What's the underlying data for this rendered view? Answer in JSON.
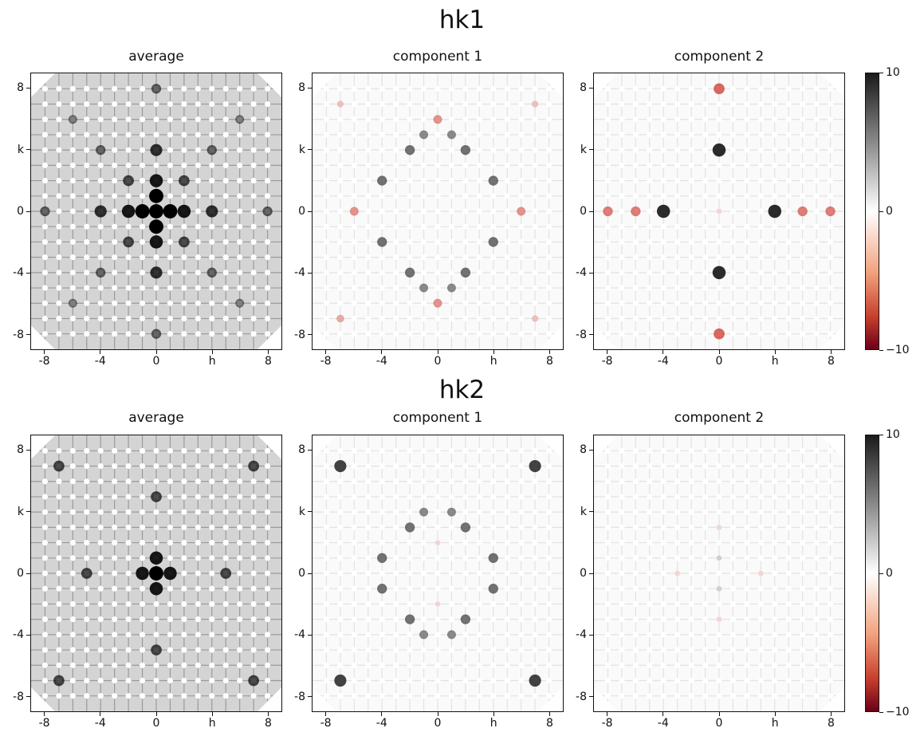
{
  "chart_data": [
    {
      "figure_title": "hk1",
      "type": "heatmap",
      "x_axis": {
        "label": "h",
        "range": [
          -9,
          9
        ],
        "ticks": [
          "-8",
          "-4",
          "0",
          "h",
          "8"
        ],
        "tick_values": [
          -8,
          -4,
          0,
          4,
          8
        ]
      },
      "y_axis": {
        "label": "k",
        "range": [
          -9,
          9
        ],
        "ticks": [
          "8",
          "k",
          "0",
          "-4",
          "-8"
        ],
        "tick_values": [
          8,
          4,
          0,
          -4,
          -8
        ]
      },
      "panels": [
        {
          "title": "average",
          "colormap": "grey",
          "peaks": [
            {
              "h": 0,
              "k": 0,
              "v": 10
            },
            {
              "h": -1,
              "k": 0,
              "v": 10
            },
            {
              "h": 1,
              "k": 0,
              "v": 10
            },
            {
              "h": 0,
              "k": 1,
              "v": 10
            },
            {
              "h": 0,
              "k": -1,
              "v": 10
            },
            {
              "h": 0,
              "k": 2,
              "v": 9
            },
            {
              "h": 0,
              "k": -2,
              "v": 9
            },
            {
              "h": -2,
              "k": 0,
              "v": 9
            },
            {
              "h": 2,
              "k": 0,
              "v": 9
            },
            {
              "h": 0,
              "k": 4,
              "v": 8
            },
            {
              "h": 0,
              "k": -4,
              "v": 8
            },
            {
              "h": -4,
              "k": 0,
              "v": 8
            },
            {
              "h": 4,
              "k": 0,
              "v": 8
            },
            {
              "h": 0,
              "k": 8,
              "v": 6
            },
            {
              "h": 0,
              "k": -8,
              "v": 6
            },
            {
              "h": -8,
              "k": 0,
              "v": 6
            },
            {
              "h": 8,
              "k": 0,
              "v": 6
            },
            {
              "h": -2,
              "k": 2,
              "v": 7
            },
            {
              "h": 2,
              "k": 2,
              "v": 7
            },
            {
              "h": -2,
              "k": -2,
              "v": 7
            },
            {
              "h": 2,
              "k": -2,
              "v": 7
            },
            {
              "h": -4,
              "k": 4,
              "v": 6
            },
            {
              "h": 4,
              "k": 4,
              "v": 6
            },
            {
              "h": -4,
              "k": -4,
              "v": 6
            },
            {
              "h": 4,
              "k": -4,
              "v": 6
            },
            {
              "h": -6,
              "k": 6,
              "v": 5
            },
            {
              "h": 6,
              "k": 6,
              "v": 5
            },
            {
              "h": -6,
              "k": -6,
              "v": 5
            },
            {
              "h": 6,
              "k": -6,
              "v": 5
            }
          ]
        },
        {
          "title": "component 1",
          "colormap": "RdGy",
          "peaks": [
            {
              "h": -2,
              "k": 4,
              "v": 6
            },
            {
              "h": 2,
              "k": 4,
              "v": 6
            },
            {
              "h": -2,
              "k": -4,
              "v": 6
            },
            {
              "h": 2,
              "k": -4,
              "v": 6
            },
            {
              "h": -4,
              "k": 2,
              "v": 6
            },
            {
              "h": 4,
              "k": 2,
              "v": 6
            },
            {
              "h": -4,
              "k": -2,
              "v": 6
            },
            {
              "h": 4,
              "k": -2,
              "v": 6
            },
            {
              "h": -1,
              "k": 5,
              "v": 5
            },
            {
              "h": 1,
              "k": 5,
              "v": 5
            },
            {
              "h": -1,
              "k": -5,
              "v": 5
            },
            {
              "h": 1,
              "k": -5,
              "v": 5
            },
            {
              "h": -6,
              "k": 0,
              "v": -5
            },
            {
              "h": 6,
              "k": 0,
              "v": -5
            },
            {
              "h": 0,
              "k": 6,
              "v": -5
            },
            {
              "h": 0,
              "k": -6,
              "v": -5
            },
            {
              "h": -7,
              "k": -7,
              "v": -4
            },
            {
              "h": 7,
              "k": 7,
              "v": -3
            },
            {
              "h": -7,
              "k": 7,
              "v": -3
            },
            {
              "h": 7,
              "k": -7,
              "v": -3
            }
          ]
        },
        {
          "title": "component 2",
          "colormap": "RdGy",
          "peaks": [
            {
              "h": 0,
              "k": 4,
              "v": 9
            },
            {
              "h": 0,
              "k": -4,
              "v": 9
            },
            {
              "h": -4,
              "k": 0,
              "v": 9
            },
            {
              "h": 4,
              "k": 0,
              "v": 9
            },
            {
              "h": 0,
              "k": 8,
              "v": -7
            },
            {
              "h": 0,
              "k": -8,
              "v": -7
            },
            {
              "h": -8,
              "k": 0,
              "v": -6
            },
            {
              "h": 8,
              "k": 0,
              "v": -6
            },
            {
              "h": 6,
              "k": 0,
              "v": -6
            },
            {
              "h": -6,
              "k": 0,
              "v": -6
            },
            {
              "h": 0,
              "k": 0,
              "v": -2
            }
          ]
        }
      ],
      "colorbar": {
        "min": -10,
        "max": 10,
        "ticks": [
          "10",
          "0",
          "−10"
        ]
      }
    },
    {
      "figure_title": "hk2",
      "type": "heatmap",
      "x_axis": {
        "label": "h",
        "range": [
          -9,
          9
        ],
        "ticks": [
          "-8",
          "-4",
          "0",
          "h",
          "8"
        ],
        "tick_values": [
          -8,
          -4,
          0,
          4,
          8
        ]
      },
      "y_axis": {
        "label": "k",
        "range": [
          -9,
          9
        ],
        "ticks": [
          "8",
          "k",
          "0",
          "-4",
          "-8"
        ],
        "tick_values": [
          8,
          4,
          0,
          -4,
          -8
        ]
      },
      "panels": [
        {
          "title": "average",
          "colormap": "grey",
          "peaks": [
            {
              "h": 0,
              "k": 0,
              "v": 10
            },
            {
              "h": -1,
              "k": 0,
              "v": 9
            },
            {
              "h": 1,
              "k": 0,
              "v": 9
            },
            {
              "h": 0,
              "k": 1,
              "v": 9
            },
            {
              "h": 0,
              "k": -1,
              "v": 9
            },
            {
              "h": 0,
              "k": 5,
              "v": 7
            },
            {
              "h": 0,
              "k": -5,
              "v": 7
            },
            {
              "h": -5,
              "k": 0,
              "v": 7
            },
            {
              "h": 5,
              "k": 0,
              "v": 7
            },
            {
              "h": -7,
              "k": 7,
              "v": 7
            },
            {
              "h": 7,
              "k": 7,
              "v": 7
            },
            {
              "h": -7,
              "k": -7,
              "v": 7
            },
            {
              "h": 7,
              "k": -7,
              "v": 7
            }
          ]
        },
        {
          "title": "component 1",
          "colormap": "RdGy",
          "peaks": [
            {
              "h": -7,
              "k": 7,
              "v": 8
            },
            {
              "h": 7,
              "k": 7,
              "v": 8
            },
            {
              "h": -7,
              "k": -7,
              "v": 8
            },
            {
              "h": 7,
              "k": -7,
              "v": 8
            },
            {
              "h": -2,
              "k": 3,
              "v": 6
            },
            {
              "h": 2,
              "k": 3,
              "v": 6
            },
            {
              "h": -2,
              "k": -3,
              "v": 6
            },
            {
              "h": 2,
              "k": -3,
              "v": 6
            },
            {
              "h": -4,
              "k": 1,
              "v": 6
            },
            {
              "h": 4,
              "k": 1,
              "v": 6
            },
            {
              "h": -4,
              "k": -1,
              "v": 6
            },
            {
              "h": 4,
              "k": -1,
              "v": 6
            },
            {
              "h": -1,
              "k": 4,
              "v": 5
            },
            {
              "h": 1,
              "k": 4,
              "v": 5
            },
            {
              "h": -1,
              "k": -4,
              "v": 5
            },
            {
              "h": 1,
              "k": -4,
              "v": 5
            },
            {
              "h": 0,
              "k": 2,
              "v": -2
            },
            {
              "h": 0,
              "k": -2,
              "v": -2
            }
          ]
        },
        {
          "title": "component 2",
          "colormap": "RdGy",
          "peaks": [
            {
              "h": -3,
              "k": 0,
              "v": -2
            },
            {
              "h": 3,
              "k": 0,
              "v": -2
            },
            {
              "h": 0,
              "k": 3,
              "v": -2
            },
            {
              "h": 0,
              "k": -3,
              "v": -2
            },
            {
              "h": 0,
              "k": 1,
              "v": 2
            },
            {
              "h": 0,
              "k": -1,
              "v": 2
            }
          ]
        }
      ],
      "colorbar": {
        "min": -10,
        "max": 10,
        "ticks": [
          "10",
          "0",
          "−10"
        ]
      }
    }
  ]
}
